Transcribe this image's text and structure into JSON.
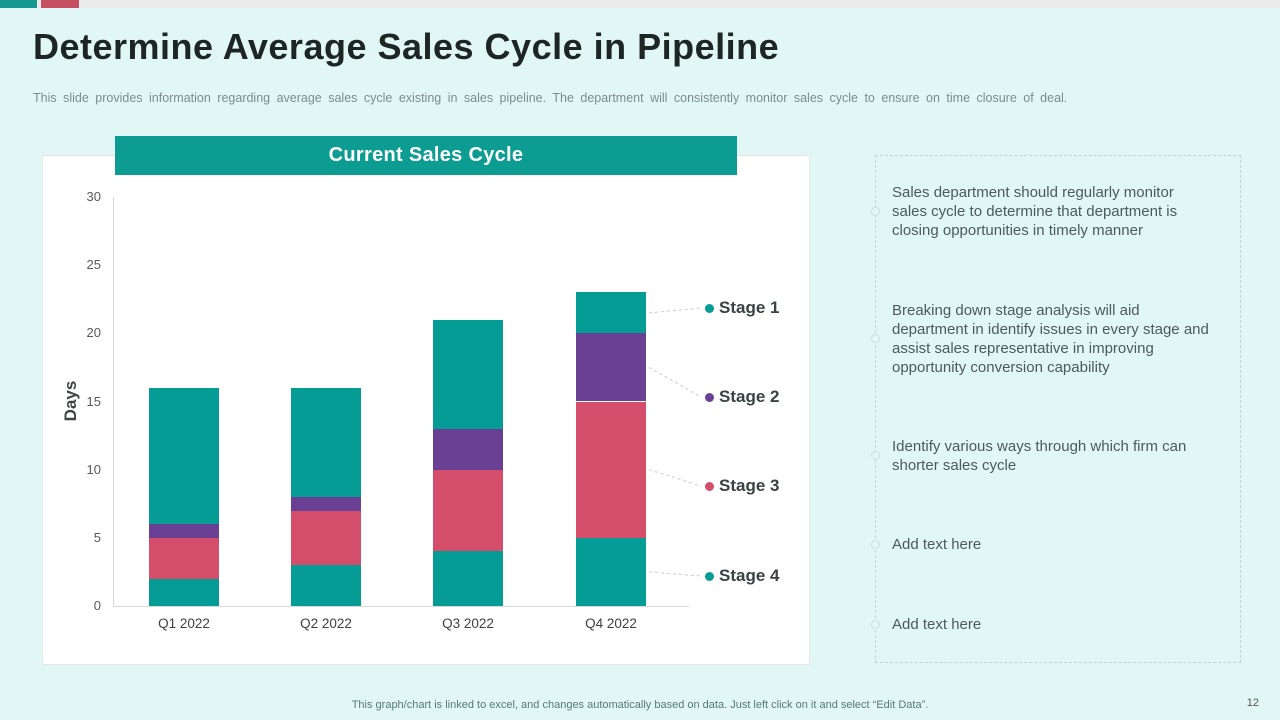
{
  "slide": {
    "title": "Determine Average Sales Cycle in Pipeline",
    "subtitle": "This slide provides  information  regarding  average  sales cycle existing in sales pipeline.  The  department  will  consistently monitor sales cycle to ensure  on time closure  of deal.",
    "footer_note": "This graph/chart is linked to excel,  and changes automatically based on data. Just left click on it and select “Edit Data”.",
    "page_number": "12",
    "accent_colors": {
      "teal": "#16988e",
      "red": "#c64f63",
      "background": "#e1f7f6"
    }
  },
  "chart_panel": {
    "banner_title": "Current Sales Cycle"
  },
  "chart_data": {
    "type": "bar",
    "stacked": true,
    "title": "Current Sales Cycle",
    "ylabel": "Days",
    "xlabel": "",
    "ylim": [
      0,
      30
    ],
    "yticks": [
      0,
      5,
      10,
      15,
      20,
      25,
      30
    ],
    "grid": false,
    "legend_position": "right",
    "categories": [
      "Q1 2022",
      "Q2 2022",
      "Q3 2022",
      "Q4 2022"
    ],
    "series": [
      {
        "name": "Stage 4",
        "color": "#049c94",
        "values": [
          2,
          3,
          4,
          5
        ]
      },
      {
        "name": "Stage 3",
        "color": "#d44e6b",
        "values": [
          3,
          4,
          6,
          10
        ]
      },
      {
        "name": "Stage 2",
        "color": "#6a4095",
        "values": [
          1,
          1,
          3,
          5
        ]
      },
      {
        "name": "Stage 1",
        "color": "#049c94",
        "values": [
          10,
          8,
          8,
          3
        ]
      }
    ],
    "totals": [
      16,
      16,
      21,
      23
    ],
    "legend": [
      {
        "label": "Stage 1",
        "color": "#049c94"
      },
      {
        "label": "Stage 2",
        "color": "#6a4095"
      },
      {
        "label": "Stage 3",
        "color": "#d44e6b"
      },
      {
        "label": "Stage 4",
        "color": "#049c94"
      }
    ]
  },
  "notes_panel": {
    "items": [
      "Sales department should  regularly  monitor sales cycle to determine  that  department is closing opportunities  in timely  manner",
      "Breaking down stage analysis  will aid department in identify  issues in every  stage and assist sales representative  in improving opportunity  conversion  capability",
      "Identify  various  ways  through  which  firm  can shorter  sales cycle",
      "Add text here",
      "Add text here"
    ]
  }
}
